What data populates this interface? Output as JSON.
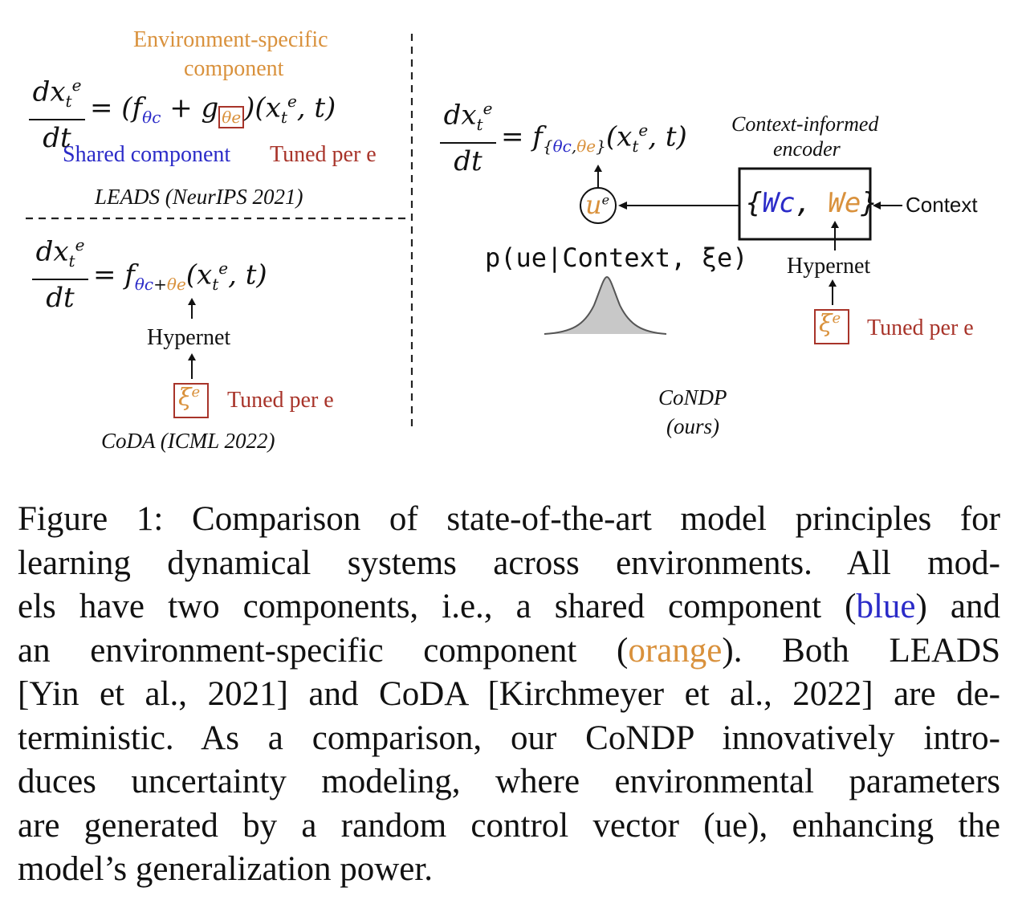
{
  "leads": {
    "annotation_env": "Environment-specific",
    "annotation_env2": "component",
    "frac_num": "dx",
    "frac_den": "dt",
    "rhs": "= (f",
    "rhs_sub": "θc",
    "rhs_plus": " + g",
    "rhs_boxed": "θe",
    "rhs_tail": ")(x",
    "rhs_tail2": ", t)",
    "shared_label": "Shared component",
    "tuned_label": "Tuned per e",
    "method_name": "LEADS (NeurIPS 2021)"
  },
  "coda": {
    "frac_num": "dx",
    "frac_den": "dt",
    "rhs_eq": "= f",
    "sub_c": "θc",
    "sub_plus": "+",
    "sub_e": "θe",
    "rhs_tail": "(x",
    "rhs_tail2": ", t)",
    "hypernet_label": "Hypernet",
    "xi_symbol": "ξ",
    "xi_sup": "e",
    "tuned_label": "Tuned per e",
    "method_name": "CoDA (ICML 2022)"
  },
  "condp": {
    "frac_num": "dx",
    "frac_den": "dt",
    "rhs_eq": "= f",
    "sub_open": "{",
    "sub_c": "θc",
    "sub_comma": ",",
    "sub_e": "θe",
    "sub_close": "}",
    "rhs_tail": "(x",
    "rhs_tail2": ", t)",
    "encoder_label_1": "Context-informed",
    "encoder_label_2": "encoder",
    "encoder_w_open": "{",
    "encoder_wc": "Wc",
    "encoder_comma": ",",
    "encoder_we": "We",
    "encoder_w_close": "}",
    "context_label": "Context",
    "u_symbol": "u",
    "u_sup": "e",
    "prob_expr": "p(ue|Context, ξe)",
    "hypernet_label": "Hypernet",
    "xi_symbol": "ξ",
    "xi_sup": "e",
    "tuned_label": "Tuned per e",
    "method_name": "CoNDP",
    "method_tag": "(ours)"
  },
  "caption": {
    "lines": [
      "Figure 1: Comparison of state-of-the-art model principles for",
      "learning dynamical systems across environments.  All mod-",
      "els have two components, i.e., a shared component (blue) and",
      "an environment-specific component (orange).  Both LEADS",
      "[Yin et al., 2021] and CoDA [Kirchmeyer et al., 2022] are de-",
      "terministic. As a comparison, our CoNDP innovatively intro-",
      "duces uncertainty modeling, where environmental parameters",
      "are generated by a random control vector (ue), enhancing the",
      "model’s generalization power."
    ]
  },
  "colors": {
    "shared": "#2b2bc8",
    "env_specific": "#d9913c",
    "tuned": "#a8342a"
  }
}
